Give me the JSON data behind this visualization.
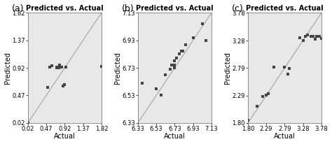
{
  "title": "Predicted vs. Actual",
  "panels": [
    {
      "label": "(a)",
      "xlabel": "Actual",
      "ylabel": "Predicted",
      "xlim": [
        0.02,
        1.82
      ],
      "ylim": [
        0.02,
        1.82
      ],
      "xticks": [
        0.02,
        0.47,
        0.92,
        1.37,
        1.82
      ],
      "yticks": [
        0.02,
        0.47,
        0.92,
        1.37,
        1.82
      ],
      "scatter_x": [
        0.02,
        0.5,
        0.55,
        0.6,
        0.72,
        0.78,
        0.8,
        0.85,
        0.88,
        0.92,
        0.95,
        0.72,
        1.82
      ],
      "scatter_y": [
        0.02,
        0.6,
        0.93,
        0.95,
        0.93,
        0.92,
        0.97,
        0.93,
        0.62,
        0.65,
        0.93,
        0.92,
        0.94
      ]
    },
    {
      "label": "(b)",
      "xlabel": "Actual",
      "ylabel": "Predicted",
      "xlim": [
        6.33,
        7.13
      ],
      "ylim": [
        6.33,
        7.13
      ],
      "xticks": [
        6.33,
        6.53,
        6.73,
        6.93,
        7.13
      ],
      "yticks": [
        6.33,
        6.53,
        6.73,
        6.93,
        7.13
      ],
      "scatter_x": [
        6.38,
        6.53,
        6.58,
        6.63,
        6.68,
        6.7,
        6.73,
        6.73,
        6.73,
        6.75,
        6.78,
        6.8,
        6.82,
        6.85,
        6.93,
        7.03,
        7.07
      ],
      "scatter_y": [
        6.62,
        6.58,
        6.53,
        6.68,
        6.72,
        6.75,
        6.73,
        6.75,
        6.78,
        6.8,
        6.83,
        6.85,
        6.85,
        6.9,
        6.95,
        7.05,
        6.93
      ]
    },
    {
      "label": "(c)",
      "xlabel": "Actual",
      "ylabel": "Predicted",
      "xlim": [
        1.8,
        3.78
      ],
      "ylim": [
        1.8,
        3.78
      ],
      "xticks": [
        1.8,
        2.29,
        2.79,
        3.28,
        3.78
      ],
      "yticks": [
        1.8,
        2.29,
        2.79,
        3.28,
        3.78
      ],
      "scatter_x": [
        1.8,
        2.05,
        2.2,
        2.29,
        2.35,
        2.5,
        2.79,
        2.88,
        2.92,
        3.2,
        3.28,
        3.35,
        3.4,
        3.5,
        3.55,
        3.6,
        3.65,
        3.72,
        3.78
      ],
      "scatter_y": [
        1.85,
        2.1,
        2.28,
        2.3,
        2.32,
        2.8,
        2.8,
        2.68,
        2.78,
        3.33,
        3.28,
        3.35,
        3.38,
        3.35,
        3.35,
        3.3,
        3.35,
        3.35,
        3.32
      ]
    }
  ],
  "scatter_color": "#444444",
  "scatter_marker": "s",
  "scatter_size": 7,
  "line_color": "#aaaaaa",
  "bg_color": "#e8e8e8",
  "title_fontsize": 7,
  "label_fontsize": 7,
  "tick_fontsize": 6,
  "panel_label_fontsize": 9
}
